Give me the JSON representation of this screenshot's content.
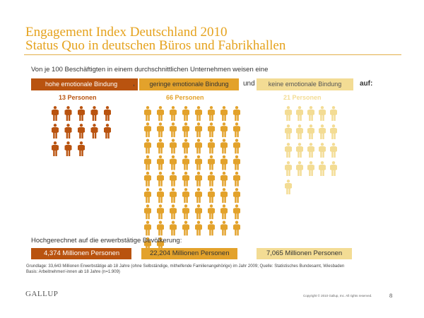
{
  "title": "Engagement Index Deutschland 2010",
  "subtitle": "Status Quo in deutschen Büros und Fabrikhallen",
  "intro_text": "Von je 100 Beschäftigten in einem durchschnittlichen Unternehmen weisen eine",
  "categories": {
    "high": "hohe emotionale Bindung",
    "low": "geringe emotionale Bindung",
    "none": "keine emotionale Bindung"
  },
  "separators": {
    "comma": ",",
    "und": "und",
    "auf": "auf:"
  },
  "extrapolation_heading": "Hochgerechnet auf die erwerbstätige Bevölkerung:",
  "population": {
    "high": "4,374 Millionen Personen",
    "low": "22,204 Millionen Personen",
    "none": "7,065 Millionen Personen"
  },
  "footnote": {
    "line1": "Grundlage: 33,643 Millionen Erwerbstätige ab 18 Jahre (ohne Selbständige, mithelfende Familienangehörige) im Jahr 2009;  Quelle: Statistisches Bundesamt, Wiesbaden",
    "line2": "Basis: Arbeitnehmer/-innen ab 18 Jahre (n=1.909)"
  },
  "footer": {
    "logo": "GALLUP",
    "copyright": "Copyright © 2010 Gallup, Inc. All rights reserved.",
    "page": "8"
  },
  "colors": {
    "high": "#b9530f",
    "low": "#e3a22b",
    "none": "#f3dc94"
  },
  "chart_data": {
    "type": "pictogram",
    "unit": "Personen",
    "per": 100,
    "series": [
      {
        "name": "hohe emotionale Bindung",
        "count": 13,
        "label": "13 Personen",
        "columns": 5,
        "color": "#b9530f"
      },
      {
        "name": "geringe emotionale Bindung",
        "count": 66,
        "label": "66 Personen",
        "columns": 8,
        "color": "#e3a22b"
      },
      {
        "name": "keine emotionale Bindung",
        "count": 21,
        "label": "21 Personen",
        "columns": 5,
        "color": "#f3dc94"
      }
    ]
  }
}
